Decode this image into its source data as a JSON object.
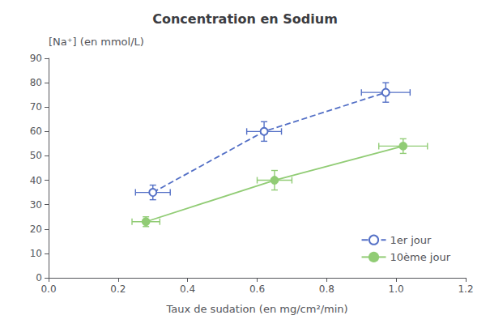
{
  "chart_data": {
    "type": "line",
    "title": "Concentration en Sodium",
    "ylabel": "[Na⁺] (en mmol/L)",
    "xlabel": "Taux de sudation (en mg/cm²/min)",
    "xlim": [
      0.0,
      1.2
    ],
    "ylim": [
      0,
      90
    ],
    "xticks": [
      {
        "value": 0.0,
        "label": "0.0"
      },
      0.2,
      0.4,
      0.6,
      0.8,
      {
        "value": 1.0,
        "label": "1.0"
      },
      1.2
    ],
    "yticks": [
      0,
      10,
      20,
      30,
      40,
      50,
      60,
      70,
      80,
      90
    ],
    "grid": false,
    "legend": "lower right",
    "series": [
      {
        "name": "1er jour",
        "marker": "circle-open",
        "line_style": "dashed",
        "x": [
          0.3,
          0.62,
          0.97
        ],
        "values": [
          35,
          60,
          76
        ],
        "xerr": [
          0.05,
          0.05,
          0.07
        ],
        "yerr": [
          3,
          4,
          4
        ]
      },
      {
        "name": "10ème jour",
        "marker": "circle",
        "line_style": "solid",
        "x": [
          0.28,
          0.65,
          1.02
        ],
        "values": [
          23,
          40,
          54
        ],
        "xerr": [
          0.04,
          0.05,
          0.07
        ],
        "yerr": [
          2,
          4,
          3
        ]
      }
    ]
  }
}
